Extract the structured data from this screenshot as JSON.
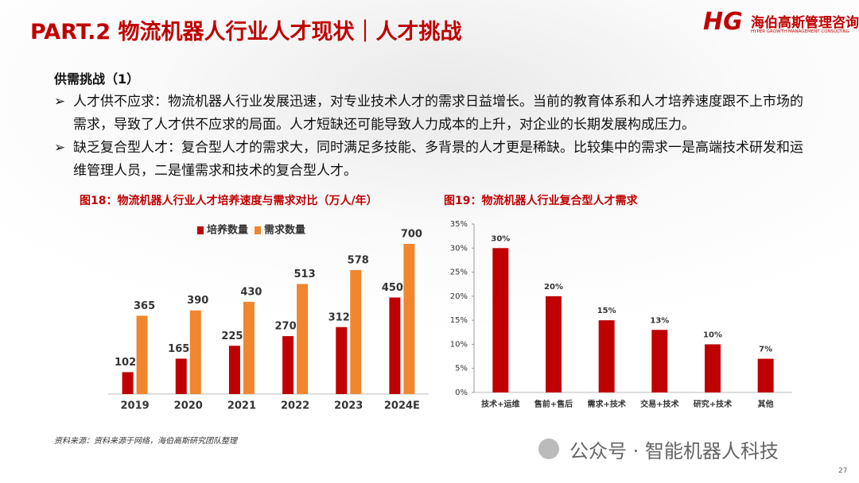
{
  "header": {
    "title": "PART.2 物流机器人行业人才现状｜人才挑战",
    "logo_mark": "HG",
    "logo_name": "海伯高斯管理咨询",
    "logo_sub": "HYPER GROWTH MANAGEMENT CONSULTING"
  },
  "section": "供需挑战（1）",
  "bullets": [
    "人才供不应求：物流机器人行业发展迅速，对专业技术人才的需求日益增长。当前的教育体系和人才培养速度跟不上市场的需求，导致了人才供不应求的局面。人才短缺还可能导致人力成本的上升，对企业的长期发展构成压力。",
    "缺乏复合型人才：复合型人才的需求大，同时满足多技能、多背景的人才更是稀缺。比较集中的需求一是高端技术研发和运维管理人员，二是懂需求和技术的复合型人才。"
  ],
  "chart_data": [
    {
      "type": "bar",
      "title": "图18：物流机器人行业人才培养速度与需求对比（万人/年）",
      "categories": [
        "2019",
        "2020",
        "2021",
        "2022",
        "2023",
        "2024E"
      ],
      "series": [
        {
          "name": "培养数量",
          "color": "#c00000",
          "values": [
            102,
            165,
            225,
            270,
            312,
            450
          ]
        },
        {
          "name": "需求数量",
          "color": "#f0862e",
          "values": [
            365,
            390,
            430,
            513,
            578,
            700
          ]
        }
      ]
    },
    {
      "type": "bar",
      "title": "图19：物流机器人行业复合型人才需求",
      "categories": [
        "技术+运维",
        "售前+售后",
        "需求+技术",
        "交易+技术",
        "研究+技术",
        "其他"
      ],
      "values": [
        30,
        20,
        15,
        13,
        10,
        7
      ],
      "value_labels": [
        "30%",
        "20%",
        "15%",
        "13%",
        "10%",
        "7%"
      ],
      "color": "#c00000",
      "ylim": [
        0,
        35
      ],
      "yticks": [
        {
          "value": 0,
          "label": "0%"
        },
        {
          "value": 5,
          "label": "5%"
        },
        {
          "value": 10,
          "label": "10%"
        },
        {
          "value": 15,
          "label": "15%"
        },
        {
          "value": 20,
          "label": "20%"
        },
        {
          "value": 25,
          "label": "25%"
        },
        {
          "value": 30,
          "label": "30%"
        },
        {
          "value": 35,
          "label": "35%"
        }
      ]
    }
  ],
  "source": "资料来源：资料来源于网络，海伯高斯研究团队整理",
  "watermark": "公众号 · 智能机器人科技",
  "page_number": "27"
}
